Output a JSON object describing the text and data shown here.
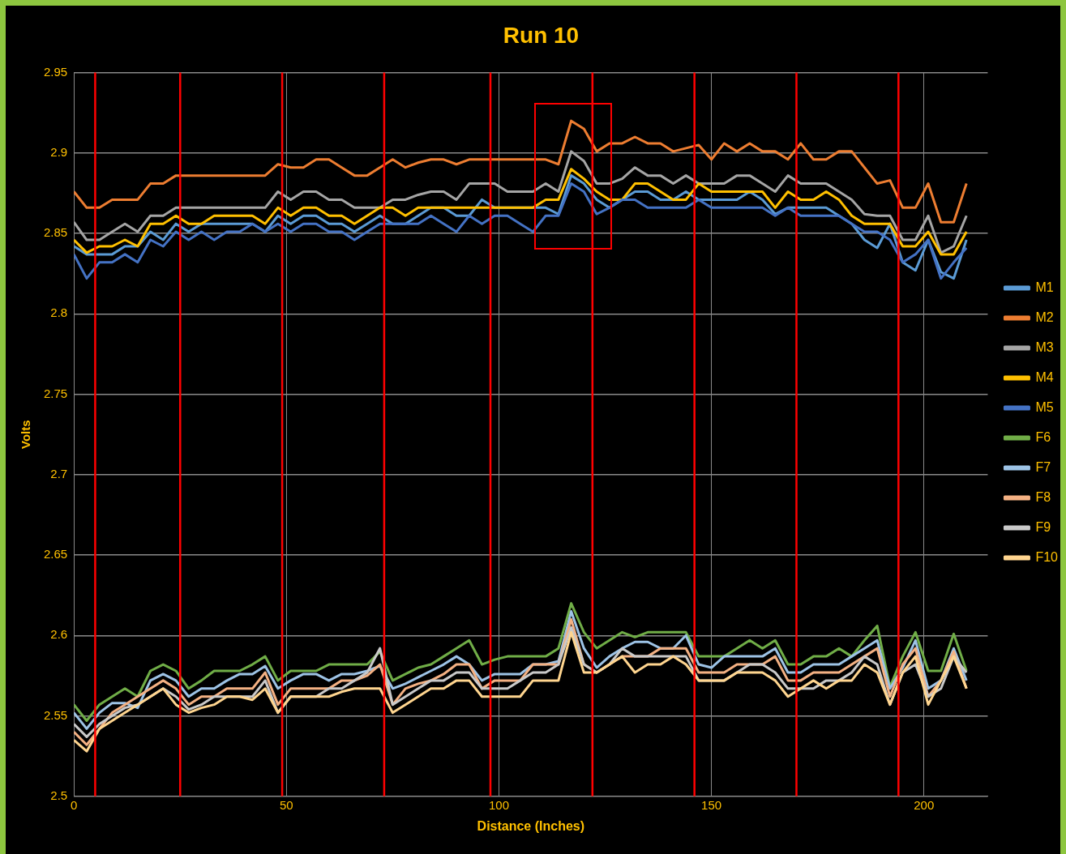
{
  "chart_data": {
    "type": "line",
    "title": "Run 10",
    "xlabel": "Distance (Inches)",
    "ylabel": "Volts",
    "x": [
      0,
      3,
      6,
      9,
      12,
      15,
      18,
      21,
      24,
      27,
      30,
      33,
      36,
      39,
      42,
      45,
      48,
      51,
      54,
      57,
      60,
      63,
      66,
      69,
      72,
      75,
      78,
      81,
      84,
      87,
      90,
      93,
      96,
      99,
      102,
      105,
      108,
      111,
      114,
      117,
      120,
      123,
      126,
      129,
      132,
      135,
      138,
      141,
      144,
      147,
      150,
      153,
      156,
      159,
      162,
      165,
      168,
      171,
      174,
      177,
      180,
      183,
      186,
      189,
      192,
      195,
      198,
      201,
      204,
      207,
      210
    ],
    "xlim": [
      0,
      215
    ],
    "xticks": [
      0,
      50,
      100,
      150,
      200
    ],
    "ylim": [
      2.5,
      2.95
    ],
    "yticks": [
      2.5,
      2.55,
      2.6,
      2.65,
      2.7,
      2.75,
      2.8,
      2.85,
      2.9,
      2.95
    ],
    "grid": true,
    "legend": "right",
    "series": [
      {
        "name": "M1",
        "color": "#5b9bd5",
        "values": [
          2.842,
          2.837,
          2.837,
          2.837,
          2.842,
          2.842,
          2.851,
          2.846,
          2.856,
          2.851,
          2.856,
          2.856,
          2.856,
          2.856,
          2.856,
          2.851,
          2.861,
          2.856,
          2.861,
          2.861,
          2.856,
          2.856,
          2.851,
          2.856,
          2.861,
          2.856,
          2.856,
          2.861,
          2.866,
          2.866,
          2.861,
          2.861,
          2.871,
          2.866,
          2.866,
          2.866,
          2.866,
          2.866,
          2.862,
          2.886,
          2.881,
          2.871,
          2.866,
          2.871,
          2.876,
          2.876,
          2.871,
          2.871,
          2.876,
          2.871,
          2.871,
          2.871,
          2.871,
          2.876,
          2.871,
          2.862,
          2.866,
          2.866,
          2.866,
          2.866,
          2.861,
          2.856,
          2.846,
          2.841,
          2.856,
          2.832,
          2.827,
          2.846,
          2.826,
          2.822,
          2.846
        ]
      },
      {
        "name": "M2",
        "color": "#ed7d31",
        "values": [
          2.876,
          2.866,
          2.866,
          2.871,
          2.871,
          2.871,
          2.881,
          2.881,
          2.886,
          2.886,
          2.886,
          2.886,
          2.886,
          2.886,
          2.886,
          2.886,
          2.893,
          2.891,
          2.891,
          2.896,
          2.896,
          2.891,
          2.886,
          2.886,
          2.891,
          2.896,
          2.891,
          2.894,
          2.896,
          2.896,
          2.893,
          2.896,
          2.896,
          2.896,
          2.896,
          2.896,
          2.896,
          2.896,
          2.893,
          2.92,
          2.915,
          2.901,
          2.906,
          2.906,
          2.91,
          2.906,
          2.906,
          2.901,
          2.903,
          2.905,
          2.896,
          2.906,
          2.901,
          2.906,
          2.901,
          2.901,
          2.896,
          2.906,
          2.896,
          2.896,
          2.901,
          2.901,
          2.891,
          2.881,
          2.883,
          2.866,
          2.866,
          2.881,
          2.857,
          2.857,
          2.881
        ]
      },
      {
        "name": "M3",
        "color": "#a5a5a5",
        "values": [
          2.857,
          2.846,
          2.846,
          2.851,
          2.856,
          2.851,
          2.861,
          2.861,
          2.866,
          2.866,
          2.866,
          2.866,
          2.866,
          2.866,
          2.866,
          2.866,
          2.876,
          2.871,
          2.876,
          2.876,
          2.871,
          2.871,
          2.866,
          2.866,
          2.866,
          2.871,
          2.871,
          2.874,
          2.876,
          2.876,
          2.871,
          2.881,
          2.881,
          2.881,
          2.876,
          2.876,
          2.876,
          2.881,
          2.876,
          2.901,
          2.895,
          2.881,
          2.881,
          2.884,
          2.891,
          2.886,
          2.886,
          2.881,
          2.886,
          2.881,
          2.881,
          2.881,
          2.886,
          2.886,
          2.881,
          2.876,
          2.886,
          2.881,
          2.881,
          2.881,
          2.876,
          2.871,
          2.862,
          2.861,
          2.861,
          2.846,
          2.846,
          2.861,
          2.838,
          2.842,
          2.861
        ]
      },
      {
        "name": "M4",
        "color": "#ffc000",
        "values": [
          2.846,
          2.838,
          2.842,
          2.842,
          2.846,
          2.842,
          2.856,
          2.856,
          2.861,
          2.856,
          2.856,
          2.861,
          2.861,
          2.861,
          2.861,
          2.856,
          2.866,
          2.861,
          2.866,
          2.866,
          2.861,
          2.861,
          2.856,
          2.861,
          2.866,
          2.866,
          2.861,
          2.866,
          2.866,
          2.866,
          2.866,
          2.866,
          2.866,
          2.866,
          2.866,
          2.866,
          2.866,
          2.871,
          2.871,
          2.89,
          2.884,
          2.876,
          2.871,
          2.871,
          2.881,
          2.881,
          2.876,
          2.871,
          2.871,
          2.881,
          2.876,
          2.876,
          2.876,
          2.876,
          2.876,
          2.866,
          2.876,
          2.871,
          2.871,
          2.876,
          2.871,
          2.861,
          2.856,
          2.856,
          2.856,
          2.842,
          2.842,
          2.851,
          2.837,
          2.837,
          2.851
        ]
      },
      {
        "name": "M5",
        "color": "#4472c4",
        "values": [
          2.837,
          2.822,
          2.832,
          2.832,
          2.837,
          2.832,
          2.846,
          2.842,
          2.851,
          2.846,
          2.851,
          2.846,
          2.851,
          2.851,
          2.856,
          2.851,
          2.856,
          2.851,
          2.856,
          2.856,
          2.851,
          2.851,
          2.846,
          2.851,
          2.856,
          2.856,
          2.856,
          2.856,
          2.861,
          2.856,
          2.851,
          2.861,
          2.856,
          2.861,
          2.861,
          2.856,
          2.851,
          2.861,
          2.861,
          2.881,
          2.876,
          2.862,
          2.866,
          2.871,
          2.871,
          2.866,
          2.866,
          2.866,
          2.866,
          2.871,
          2.866,
          2.866,
          2.866,
          2.866,
          2.866,
          2.861,
          2.866,
          2.861,
          2.861,
          2.861,
          2.861,
          2.856,
          2.851,
          2.851,
          2.846,
          2.832,
          2.837,
          2.846,
          2.822,
          2.832,
          2.841
        ]
      },
      {
        "name": "F6",
        "color": "#70ad47",
        "values": [
          2.557,
          2.547,
          2.557,
          2.562,
          2.567,
          2.562,
          2.578,
          2.582,
          2.578,
          2.567,
          2.572,
          2.578,
          2.578,
          2.578,
          2.582,
          2.587,
          2.572,
          2.578,
          2.578,
          2.578,
          2.582,
          2.582,
          2.582,
          2.582,
          2.59,
          2.572,
          2.576,
          2.58,
          2.582,
          2.587,
          2.592,
          2.597,
          2.582,
          2.585,
          2.587,
          2.587,
          2.587,
          2.587,
          2.592,
          2.62,
          2.602,
          2.592,
          2.597,
          2.602,
          2.599,
          2.602,
          2.602,
          2.602,
          2.602,
          2.587,
          2.587,
          2.587,
          2.592,
          2.597,
          2.592,
          2.597,
          2.582,
          2.582,
          2.587,
          2.587,
          2.592,
          2.587,
          2.597,
          2.606,
          2.568,
          2.587,
          2.602,
          2.578,
          2.578,
          2.601,
          2.578
        ]
      },
      {
        "name": "F7",
        "color": "#9dc3e6",
        "values": [
          2.552,
          2.542,
          2.552,
          2.558,
          2.558,
          2.555,
          2.572,
          2.576,
          2.572,
          2.562,
          2.567,
          2.567,
          2.572,
          2.576,
          2.576,
          2.581,
          2.567,
          2.572,
          2.576,
          2.576,
          2.572,
          2.576,
          2.576,
          2.578,
          2.581,
          2.567,
          2.57,
          2.574,
          2.578,
          2.582,
          2.587,
          2.582,
          2.572,
          2.576,
          2.576,
          2.576,
          2.582,
          2.582,
          2.584,
          2.615,
          2.592,
          2.58,
          2.587,
          2.592,
          2.596,
          2.596,
          2.592,
          2.592,
          2.6,
          2.582,
          2.58,
          2.587,
          2.587,
          2.587,
          2.587,
          2.592,
          2.577,
          2.577,
          2.582,
          2.582,
          2.582,
          2.587,
          2.592,
          2.597,
          2.567,
          2.58,
          2.597,
          2.567,
          2.572,
          2.592,
          2.572
        ]
      },
      {
        "name": "F8",
        "color": "#f4b183",
        "values": [
          2.54,
          2.532,
          2.542,
          2.552,
          2.557,
          2.562,
          2.567,
          2.572,
          2.567,
          2.557,
          2.562,
          2.562,
          2.567,
          2.567,
          2.567,
          2.577,
          2.557,
          2.567,
          2.567,
          2.567,
          2.567,
          2.572,
          2.572,
          2.575,
          2.582,
          2.557,
          2.567,
          2.57,
          2.572,
          2.576,
          2.582,
          2.582,
          2.567,
          2.572,
          2.572,
          2.572,
          2.582,
          2.582,
          2.582,
          2.61,
          2.582,
          2.577,
          2.582,
          2.587,
          2.587,
          2.587,
          2.592,
          2.592,
          2.592,
          2.577,
          2.577,
          2.577,
          2.582,
          2.582,
          2.582,
          2.587,
          2.572,
          2.572,
          2.577,
          2.577,
          2.577,
          2.582,
          2.587,
          2.592,
          2.562,
          2.582,
          2.592,
          2.562,
          2.572,
          2.59,
          2.567
        ]
      },
      {
        "name": "F9",
        "color": "#c9c9c9",
        "values": [
          2.545,
          2.537,
          2.545,
          2.55,
          2.555,
          2.557,
          2.562,
          2.567,
          2.562,
          2.554,
          2.557,
          2.562,
          2.562,
          2.562,
          2.562,
          2.572,
          2.552,
          2.562,
          2.562,
          2.562,
          2.567,
          2.567,
          2.572,
          2.577,
          2.592,
          2.557,
          2.562,
          2.567,
          2.572,
          2.572,
          2.577,
          2.577,
          2.567,
          2.567,
          2.567,
          2.572,
          2.577,
          2.577,
          2.582,
          2.605,
          2.582,
          2.577,
          2.582,
          2.592,
          2.587,
          2.587,
          2.587,
          2.587,
          2.587,
          2.572,
          2.572,
          2.572,
          2.577,
          2.582,
          2.582,
          2.577,
          2.567,
          2.567,
          2.567,
          2.572,
          2.572,
          2.577,
          2.587,
          2.582,
          2.557,
          2.577,
          2.582,
          2.562,
          2.567,
          2.587,
          2.577
        ]
      },
      {
        "name": "F10",
        "color": "#ffd58f",
        "values": [
          2.535,
          2.528,
          2.542,
          2.547,
          2.552,
          2.557,
          2.562,
          2.567,
          2.557,
          2.552,
          2.555,
          2.557,
          2.562,
          2.562,
          2.56,
          2.567,
          2.552,
          2.562,
          2.562,
          2.562,
          2.562,
          2.565,
          2.567,
          2.567,
          2.567,
          2.552,
          2.557,
          2.562,
          2.567,
          2.567,
          2.572,
          2.572,
          2.562,
          2.562,
          2.562,
          2.562,
          2.572,
          2.572,
          2.572,
          2.602,
          2.577,
          2.577,
          2.582,
          2.587,
          2.577,
          2.582,
          2.582,
          2.587,
          2.582,
          2.572,
          2.572,
          2.572,
          2.577,
          2.577,
          2.577,
          2.572,
          2.562,
          2.567,
          2.572,
          2.567,
          2.572,
          2.572,
          2.582,
          2.577,
          2.557,
          2.577,
          2.587,
          2.557,
          2.572,
          2.587,
          2.567
        ]
      }
    ],
    "ref_lines": [
      {
        "axis": "x",
        "value": 5,
        "color": "#ff0000"
      },
      {
        "axis": "x",
        "value": 25,
        "color": "#ff0000"
      },
      {
        "axis": "x",
        "value": 49,
        "color": "#ff0000"
      },
      {
        "axis": "x",
        "value": 73,
        "color": "#ff0000"
      },
      {
        "axis": "x",
        "value": 98,
        "color": "#ff0000"
      },
      {
        "axis": "x",
        "value": 122,
        "color": "#ff0000"
      },
      {
        "axis": "x",
        "value": 146,
        "color": "#ff0000"
      },
      {
        "axis": "x",
        "value": 170,
        "color": "#ff0000"
      },
      {
        "axis": "x",
        "value": 194,
        "color": "#ff0000"
      }
    ]
  }
}
